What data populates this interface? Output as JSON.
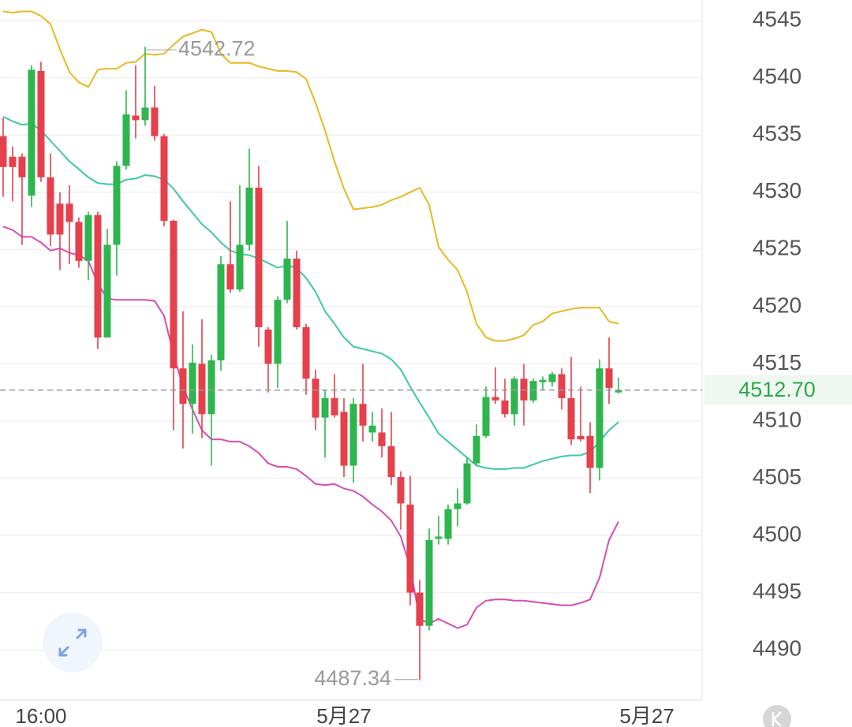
{
  "chart_data": {
    "type": "candlestick",
    "open": [
      4534.9,
      4533.1,
      4533.1,
      4529.7,
      4540.6,
      4531.3,
      4529.0,
      4529.0,
      4527.4,
      4524.0,
      4528.0,
      4517.3,
      4525.4,
      4532.3,
      4536.7,
      4536.3,
      4537.4,
      4534.9,
      4527.5,
      4514.6,
      4511.5,
      4515.0,
      4510.6,
      4515.3,
      4523.7,
      4521.5,
      4525.4,
      4530.4,
      4518.0,
      4515.0,
      4520.6,
      4524.2,
      4518.2,
      4513.7,
      4510.3,
      4512.0,
      4510.8,
      4506.1,
      4511.5,
      4509.0,
      4509.0,
      4507.8,
      4505.1,
      4502.7,
      4495.0,
      4492.1,
      4499.7,
      4499.7,
      4502.3,
      4502.8,
      4506.3,
      4508.7,
      4512.1,
      4511.8,
      4510.6,
      4513.7,
      4511.8,
      4513.4,
      4513.4,
      4514.1,
      4512.0,
      4508.7,
      4508.7,
      4505.9,
      4514.6,
      4512.5
    ],
    "high": [
      4536.5,
      4534.0,
      4533.4,
      4541.1,
      4541.4,
      4533.4,
      4530.0,
      4530.6,
      4527.8,
      4528.3,
      4528.3,
      4526.8,
      4532.7,
      4538.9,
      4541.1,
      4542.72,
      4539.3,
      4535.1,
      4527.6,
      4519.6,
      4516.7,
      4518.9,
      4515.8,
      4524.4,
      4529.2,
      4530.6,
      4533.8,
      4532.3,
      4518.2,
      4520.9,
      4527.5,
      4524.9,
      4518.5,
      4514.5,
      4512.7,
      4514.1,
      4512.0,
      4512.0,
      4515.0,
      4510.8,
      4511.1,
      4510.8,
      4505.6,
      4505.2,
      4496.1,
      4500.6,
      4501.7,
      4502.7,
      4504.1,
      4506.8,
      4509.7,
      4513.0,
      4514.7,
      4513.7,
      4513.9,
      4515.0,
      4513.7,
      4513.9,
      4514.3,
      4514.6,
      4515.6,
      4513.0,
      4509.9,
      4515.4,
      4517.3,
      4513.8
    ],
    "low": [
      4529.6,
      4529.2,
      4525.4,
      4528.7,
      4530.9,
      4525.3,
      4523.2,
      4523.7,
      4523.4,
      4522.3,
      4516.3,
      4517.3,
      4522.7,
      4532.0,
      4534.7,
      4535.8,
      4534.5,
      4527.0,
      4509.2,
      4507.6,
      4508.9,
      4508.5,
      4506.1,
      4514.4,
      4521.2,
      4521.3,
      4524.9,
      4516.5,
      4512.5,
      4512.9,
      4520.3,
      4518.0,
      4512.3,
      4509.2,
      4506.8,
      4510.3,
      4505.1,
      4504.6,
      4508.2,
      4508.2,
      4506.8,
      4504.4,
      4500.5,
      4493.9,
      4487.34,
      4491.7,
      4499.2,
      4499.2,
      4500.8,
      4502.7,
      4506.1,
      4508.5,
      4511.5,
      4510.3,
      4509.6,
      4509.6,
      4511.6,
      4512.7,
      4513.0,
      4511.0,
      4507.9,
      4508.2,
      4503.7,
      4504.8,
      4511.5,
      4512.4
    ],
    "close": [
      4532.2,
      4532.2,
      4531.3,
      4540.7,
      4531.3,
      4526.3,
      4526.3,
      4527.4,
      4524.0,
      4528.0,
      4517.3,
      4525.4,
      4532.3,
      4536.8,
      4536.3,
      4537.4,
      4534.9,
      4527.5,
      4514.6,
      4511.5,
      4515.1,
      4510.6,
      4515.3,
      4523.7,
      4521.5,
      4525.4,
      4530.4,
      4518.2,
      4515.0,
      4520.6,
      4524.2,
      4518.2,
      4513.7,
      4510.3,
      4512.0,
      4510.5,
      4506.1,
      4511.5,
      4509.6,
      4509.6,
      4507.8,
      4505.1,
      4502.8,
      4495.0,
      4492.1,
      4499.6,
      4499.9,
      4502.3,
      4502.8,
      4506.3,
      4508.7,
      4512.1,
      4511.8,
      4510.6,
      4513.7,
      4511.8,
      4513.5,
      4513.6,
      4514.1,
      4512.0,
      4508.4,
      4508.4,
      4505.9,
      4514.6,
      4512.9,
      4512.7
    ],
    "up_color": "#2eb54e",
    "down_color": "#e5404c",
    "overlays": [
      {
        "color": "#e8b923",
        "values": [
          4545.8,
          4545.7,
          4545.8,
          4545.8,
          4545.4,
          4544.7,
          4542.5,
          4540.5,
          4539.6,
          4539.2,
          4540.7,
          4540.8,
          4540.8,
          4541.3,
          4541.4,
          4542.1,
          4542.0,
          4542.1,
          4542.9,
          4543.6,
          4543.9,
          4544.2,
          4544.0,
          4542.1,
          4541.3,
          4541.3,
          4541.3,
          4541.0,
          4540.8,
          4540.6,
          4540.6,
          4540.5,
          4539.9,
          4537.8,
          4535.4,
          4532.7,
          4530.3,
          4528.5,
          4528.6,
          4528.7,
          4528.9,
          4529.3,
          4529.6,
          4530.0,
          4530.4,
          4528.9,
          4525.2,
          4524.1,
          4523.2,
          4521.3,
          4518.5,
          4517.3,
          4517.0,
          4517.0,
          4517.2,
          4517.5,
          4518.4,
          4518.7,
          4519.4,
          4519.6,
          4519.8,
          4519.9,
          4519.9,
          4519.9,
          4518.7,
          4518.5
        ]
      },
      {
        "color": "#3cc9a6",
        "values": [
          4536.6,
          4536.2,
          4535.9,
          4536.0,
          4535.4,
          4534.5,
          4533.6,
          4532.7,
          4532.0,
          4531.3,
          4530.8,
          4530.7,
          4530.7,
          4531.1,
          4531.2,
          4531.5,
          4531.4,
          4531.1,
          4530.3,
          4529.2,
          4528.2,
          4527.2,
          4526.5,
          4525.6,
          4524.9,
          4524.6,
          4524.5,
          4524.2,
          4523.8,
          4523.4,
          4523.6,
          4523.4,
          4522.5,
          4521.3,
          4519.6,
          4518.5,
          4517.3,
          4516.5,
          4516.3,
          4516.1,
          4515.9,
          4515.4,
          4514.5,
          4513.0,
          4511.6,
          4510.3,
          4508.9,
          4508.2,
          4507.5,
          4506.8,
          4506.1,
          4505.9,
          4505.8,
          4505.8,
          4505.9,
          4505.9,
          4506.2,
          4506.5,
          4506.7,
          4506.9,
          4507.0,
          4507.0,
          4507.3,
          4508.2,
          4509.2,
          4509.9
        ]
      },
      {
        "color": "#d44db6",
        "values": [
          4527.0,
          4526.7,
          4526.1,
          4526.1,
          4525.6,
          4524.9,
          4525.1,
          4524.7,
          4524.5,
          4524.0,
          4522.0,
          4520.7,
          4520.6,
          4520.6,
          4520.6,
          4520.6,
          4520.5,
          4519.2,
          4515.8,
          4513.0,
          4511.0,
          4509.2,
          4508.4,
          4508.4,
          4508.2,
          4508.2,
          4507.8,
          4507.2,
          4506.3,
          4506.0,
          4506.0,
          4505.8,
          4505.2,
          4504.5,
          4504.4,
          4504.5,
          4504.1,
          4503.9,
          4503.4,
          4502.7,
          4502.1,
          4501.3,
          4499.9,
          4497.2,
          4492.7,
          4492.3,
          4492.7,
          4492.3,
          4491.9,
          4492.2,
          4493.7,
          4494.3,
          4494.4,
          4494.4,
          4494.3,
          4494.3,
          4494.2,
          4494.1,
          4494.0,
          4493.9,
          4493.9,
          4494.1,
          4494.4,
          4496.3,
          4499.6,
          4501.2
        ]
      }
    ],
    "last_price": {
      "value": 4512.7,
      "label": "4512.70"
    },
    "ylim": [
      4485.6,
      4546.8
    ],
    "yticks": [
      4490,
      4495,
      4500,
      4505,
      4510,
      4515,
      4520,
      4525,
      4530,
      4535,
      4540,
      4545
    ],
    "xlim": [
      -0.33,
      73.83
    ],
    "xticks": [
      {
        "value": 4,
        "label": "16:00"
      },
      {
        "value": 36,
        "label": "5月27"
      },
      {
        "value": 68,
        "label": "5月27"
      }
    ],
    "grid": true
  }
}
